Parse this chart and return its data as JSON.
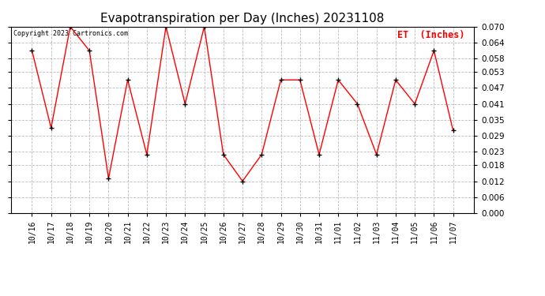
{
  "title": "Evapotranspiration per Day (Inches) 20231108",
  "copyright": "Copyright 2023 Cartronics.com",
  "legend_label": "ET  (Inches)",
  "x_labels": [
    "10/16",
    "10/17",
    "10/18",
    "10/19",
    "10/20",
    "10/21",
    "10/22",
    "10/23",
    "10/24",
    "10/25",
    "10/26",
    "10/27",
    "10/28",
    "10/29",
    "10/30",
    "10/31",
    "11/01",
    "11/02",
    "11/03",
    "11/04",
    "11/05",
    "11/06",
    "11/07"
  ],
  "y_values": [
    0.061,
    0.032,
    0.07,
    0.061,
    0.013,
    0.05,
    0.022,
    0.07,
    0.041,
    0.07,
    0.022,
    0.012,
    0.022,
    0.05,
    0.05,
    0.022,
    0.05,
    0.041,
    0.022,
    0.05,
    0.041,
    0.061,
    0.031
  ],
  "line_color": "#ff0000",
  "marker_color": "#000000",
  "background_color": "#ffffff",
  "grid_color": "#bbbbbb",
  "title_color": "#000000",
  "copyright_color": "#000000",
  "legend_color": "#ff0000",
  "ylim": [
    0.0,
    0.07
  ],
  "yticks": [
    0.0,
    0.006,
    0.012,
    0.018,
    0.023,
    0.029,
    0.035,
    0.041,
    0.047,
    0.053,
    0.058,
    0.064,
    0.07
  ]
}
